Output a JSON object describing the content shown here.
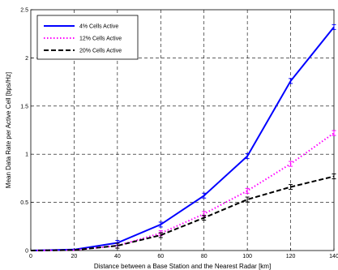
{
  "chart_data": {
    "type": "line",
    "xlabel": "Distance between a Base Station and the Nearest Radar [km]",
    "ylabel": "Mean Data Rate per Active Cell [bps/Hz]",
    "xlim": [
      0,
      140
    ],
    "ylim": [
      0,
      2.5
    ],
    "x_ticks": [
      "0",
      "20",
      "40",
      "60",
      "80",
      "100",
      "120",
      "140"
    ],
    "y_ticks": [
      "0",
      "0.5",
      "1",
      "1.5",
      "2",
      "2.5"
    ],
    "grid": true,
    "legend_position": "top-left",
    "x": [
      0,
      20,
      40,
      60,
      80,
      100,
      120,
      140
    ],
    "series": [
      {
        "name": "4% Cells Active",
        "values": [
          0,
          0.01,
          0.08,
          0.27,
          0.57,
          0.98,
          1.76,
          2.32
        ],
        "color": "#0000ff",
        "style": "solid"
      },
      {
        "name": "12% Cells Active",
        "values": [
          0,
          0.005,
          0.05,
          0.18,
          0.38,
          0.62,
          0.9,
          1.22
        ],
        "color": "#ff00ff",
        "style": "dotted"
      },
      {
        "name": "20% Cells Active",
        "values": [
          0,
          0.005,
          0.05,
          0.16,
          0.34,
          0.53,
          0.66,
          0.77
        ],
        "color": "#000000",
        "style": "dashed"
      }
    ]
  }
}
